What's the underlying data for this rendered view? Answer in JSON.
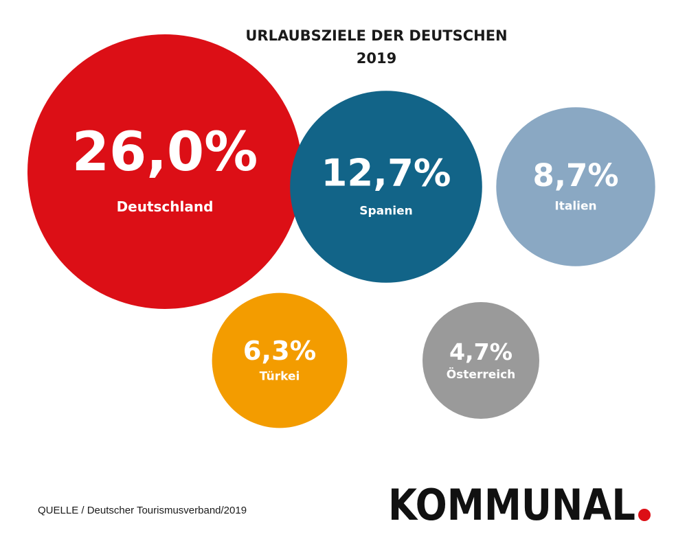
{
  "chart_data": {
    "type": "bubble",
    "title": "URLAUBSZIELE DER DEUTSCHEN",
    "subtitle": "2019",
    "categories": [
      "Deutschland",
      "Spanien",
      "Italien",
      "Türkei",
      "Österreich"
    ],
    "values": [
      26.0,
      12.7,
      8.7,
      6.3,
      4.7
    ],
    "value_labels": [
      "26,0%",
      "12,7%",
      "8,7%",
      "6,3%",
      "4,7%"
    ],
    "colors": [
      "#dc0f16",
      "#126488",
      "#8aa8c3",
      "#f39c00",
      "#9a9a9a"
    ],
    "unit": "%"
  },
  "footer": {
    "source": "QUELLE / Deutscher Tourismusverband/2019"
  },
  "brand": {
    "logo_text": "KOMMUNAL",
    "logo_dot_color": "#dc0f16"
  }
}
